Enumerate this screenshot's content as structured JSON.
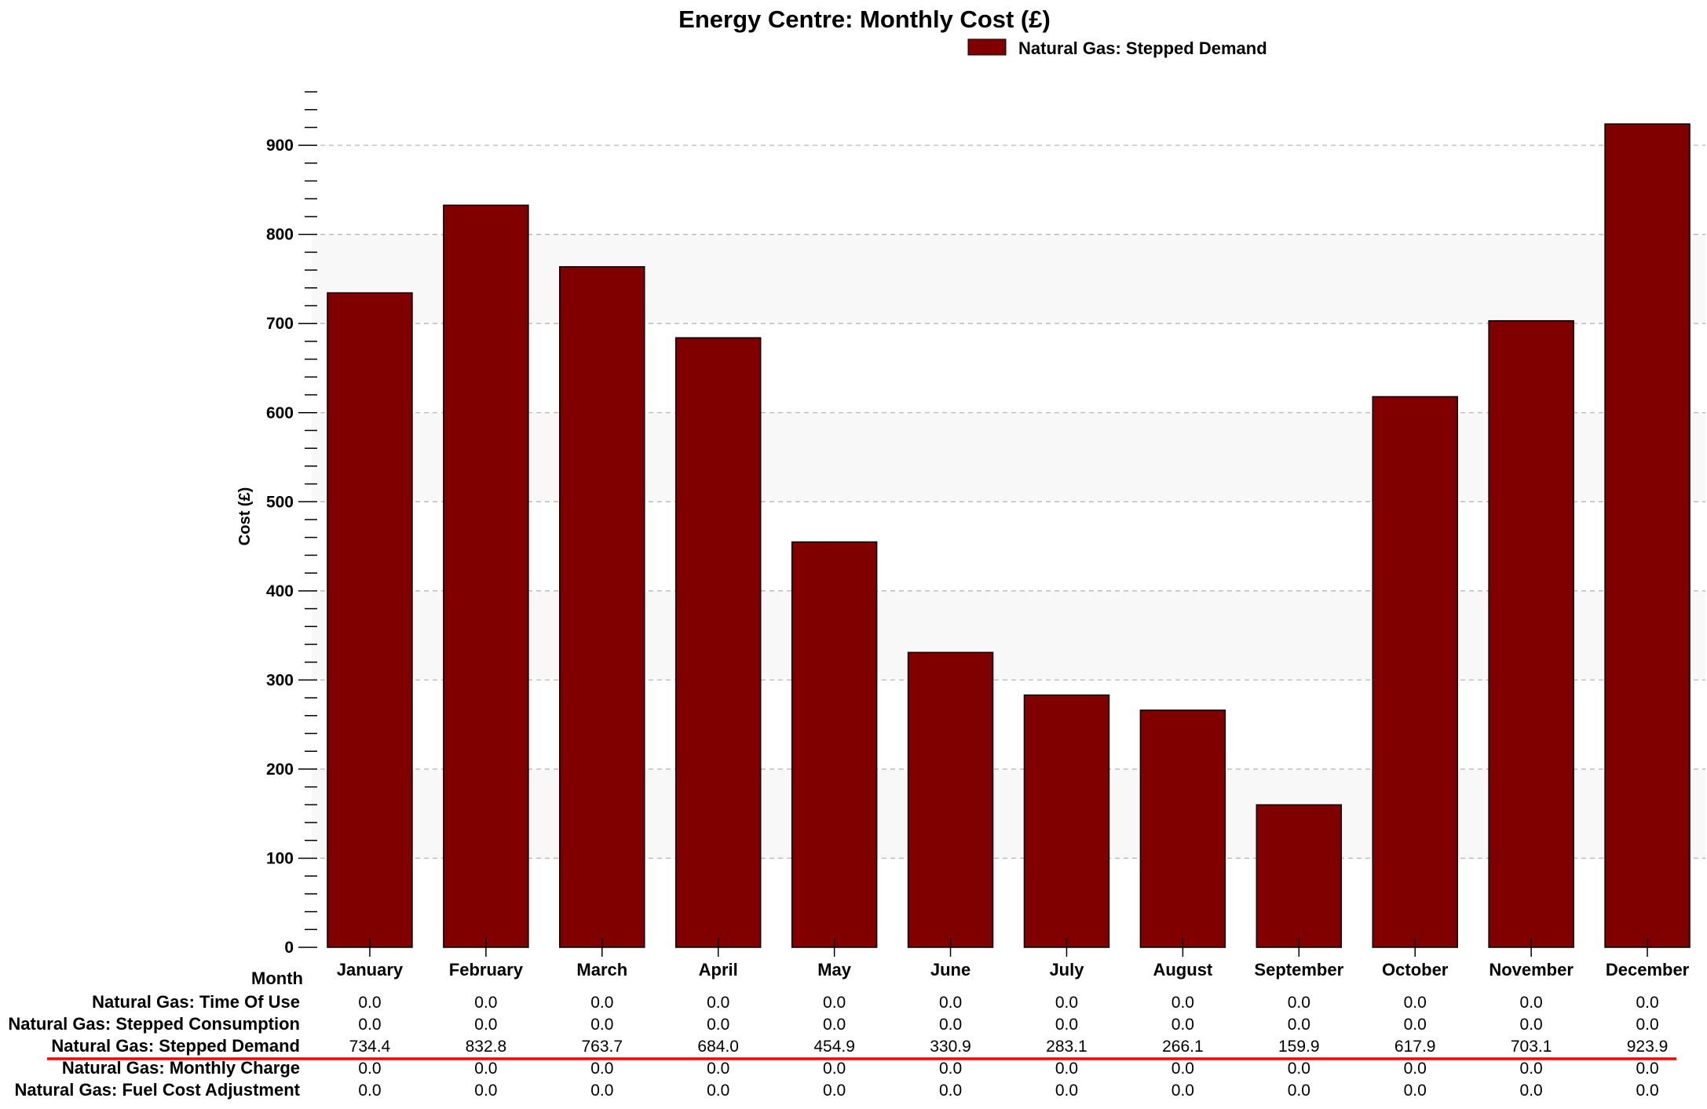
{
  "chart_data": {
    "type": "bar",
    "title": "Energy Centre: Monthly Cost (£)",
    "ylabel": "Cost (£)",
    "xlabel": "Month",
    "ylim": [
      0,
      960
    ],
    "yticks": [
      0,
      100,
      200,
      300,
      400,
      500,
      600,
      700,
      800,
      900
    ],
    "grid": true,
    "legend_position": "top-right",
    "categories": [
      "January",
      "February",
      "March",
      "April",
      "May",
      "June",
      "July",
      "August",
      "September",
      "October",
      "November",
      "December"
    ],
    "series": [
      {
        "name": "Natural Gas: Stepped Demand",
        "color": "#800000",
        "values": [
          734.4,
          832.8,
          763.7,
          684.0,
          454.9,
          330.9,
          283.1,
          266.1,
          159.9,
          617.9,
          703.1,
          923.9
        ]
      }
    ],
    "table": {
      "highlight_row": 2,
      "highlight_color": "#ff0000",
      "rows": [
        {
          "label": "Natural Gas: Time Of Use",
          "values": [
            "0.0",
            "0.0",
            "0.0",
            "0.0",
            "0.0",
            "0.0",
            "0.0",
            "0.0",
            "0.0",
            "0.0",
            "0.0",
            "0.0"
          ]
        },
        {
          "label": "Natural Gas: Stepped Consumption",
          "values": [
            "0.0",
            "0.0",
            "0.0",
            "0.0",
            "0.0",
            "0.0",
            "0.0",
            "0.0",
            "0.0",
            "0.0",
            "0.0",
            "0.0"
          ]
        },
        {
          "label": "Natural Gas: Stepped Demand",
          "values": [
            "734.4",
            "832.8",
            "763.7",
            "684.0",
            "454.9",
            "330.9",
            "283.1",
            "266.1",
            "159.9",
            "617.9",
            "703.1",
            "923.9"
          ]
        },
        {
          "label": "Natural Gas: Monthly Charge",
          "values": [
            "0.0",
            "0.0",
            "0.0",
            "0.0",
            "0.0",
            "0.0",
            "0.0",
            "0.0",
            "0.0",
            "0.0",
            "0.0",
            "0.0"
          ]
        },
        {
          "label": "Natural Gas: Fuel Cost Adjustment",
          "values": [
            "0.0",
            "0.0",
            "0.0",
            "0.0",
            "0.0",
            "0.0",
            "0.0",
            "0.0",
            "0.0",
            "0.0",
            "0.0",
            "0.0"
          ]
        }
      ]
    }
  }
}
